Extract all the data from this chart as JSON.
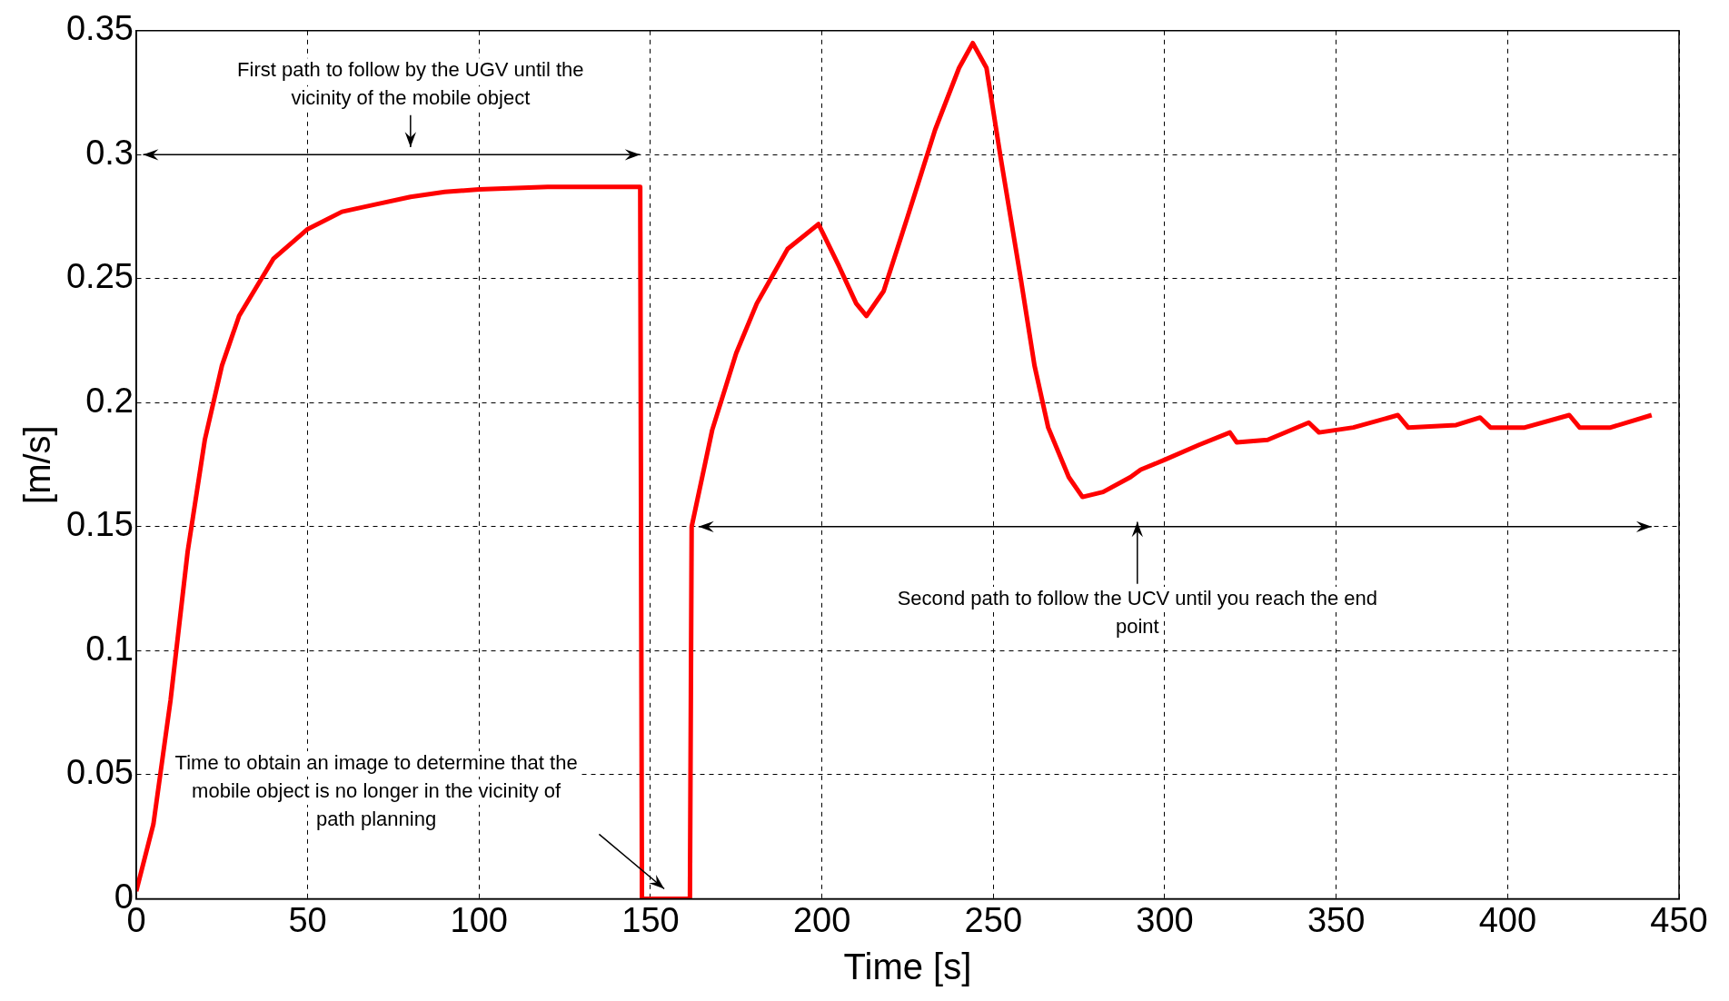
{
  "chart_data": {
    "type": "line",
    "xlabel": "Time [s]",
    "ylabel": "[m/s]",
    "xlim": [
      0,
      450
    ],
    "xticks": [
      0,
      50,
      100,
      150,
      200,
      250,
      300,
      350,
      400,
      450
    ],
    "ylim": [
      0,
      0.35
    ],
    "yticks": [
      0,
      0.05,
      0.1,
      0.15,
      0.2,
      0.25,
      0.3,
      0.35
    ],
    "grid": true,
    "legend": false,
    "marker": "none",
    "line_style": "solid",
    "series": [
      {
        "color": "#ff0000",
        "x": [
          0,
          5,
          10,
          15,
          20,
          25,
          30,
          40,
          50,
          60,
          70,
          80,
          90,
          100,
          120,
          140,
          147,
          147.5,
          161.5,
          162,
          168,
          175,
          181,
          190,
          199,
          205,
          210,
          213,
          218,
          225,
          233,
          240,
          244,
          248,
          252,
          258,
          262,
          266,
          272,
          276,
          282,
          290,
          293,
          300,
          310,
          319,
          321,
          330,
          342,
          345,
          355,
          368,
          371,
          385,
          392,
          395,
          405,
          418,
          421,
          430,
          442
        ],
        "values": [
          0.003,
          0.03,
          0.08,
          0.14,
          0.185,
          0.215,
          0.235,
          0.258,
          0.27,
          0.277,
          0.28,
          0.283,
          0.285,
          0.286,
          0.287,
          0.287,
          0.287,
          0,
          0,
          0.15,
          0.189,
          0.22,
          0.24,
          0.262,
          0.272,
          0.255,
          0.24,
          0.235,
          0.245,
          0.275,
          0.31,
          0.335,
          0.345,
          0.335,
          0.3,
          0.25,
          0.215,
          0.19,
          0.17,
          0.162,
          0.164,
          0.17,
          0.173,
          0.177,
          0.183,
          0.188,
          0.184,
          0.185,
          0.192,
          0.188,
          0.19,
          0.195,
          0.19,
          0.191,
          0.194,
          0.19,
          0.19,
          0.195,
          0.19,
          0.19,
          0.195
        ]
      }
    ],
    "annotations": [
      "First path to follow by the UGV until the vicinity of the mobile object",
      "Second path to follow the UCV until you reach the end point",
      "Time to obtain an image to determine that the mobile object is no longer in the vicinity of path planning"
    ]
  }
}
